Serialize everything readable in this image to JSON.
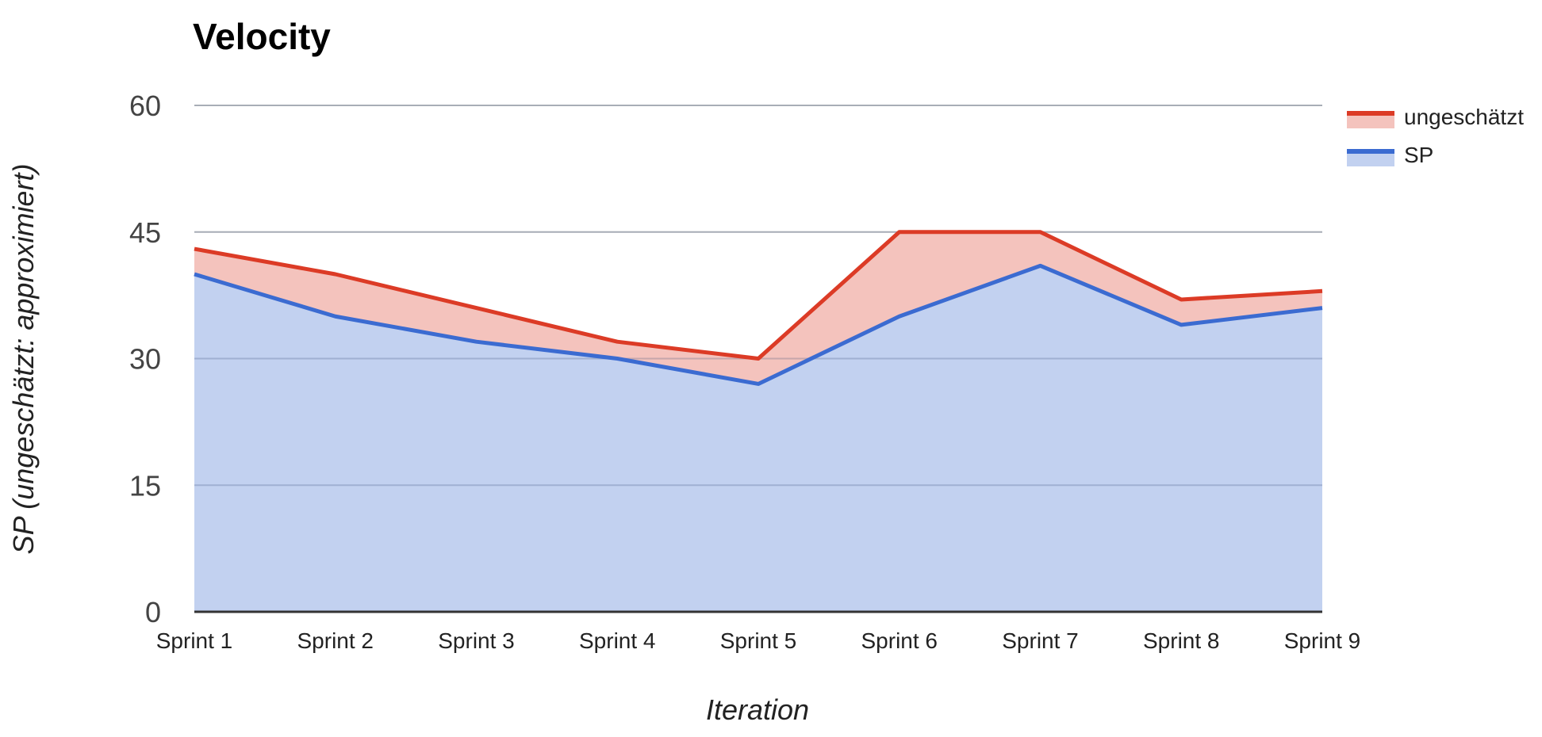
{
  "chart_data": {
    "type": "area",
    "stacked": true,
    "title": "Velocity",
    "xlabel": "Iteration",
    "ylabel": "SP (ungeschätzt: approximiert)",
    "categories": [
      "Sprint 1",
      "Sprint 2",
      "Sprint 3",
      "Sprint 4",
      "Sprint 5",
      "Sprint 6",
      "Sprint 7",
      "Sprint 8",
      "Sprint 9"
    ],
    "ylim": [
      0,
      60
    ],
    "yticks": [
      0,
      15,
      30,
      45,
      60
    ],
    "grid": true,
    "legend": "right",
    "series": [
      {
        "name": "SP",
        "color": "#3b6bd1",
        "fill": "#c2d1f0",
        "values": [
          40,
          35,
          32,
          30,
          27,
          35,
          41,
          34,
          36
        ]
      },
      {
        "name": "ungeschätzt",
        "color": "#dc3b26",
        "fill": "#f4c3bd",
        "values": [
          3,
          5,
          4,
          2,
          3,
          10,
          4,
          3,
          2
        ]
      }
    ]
  }
}
